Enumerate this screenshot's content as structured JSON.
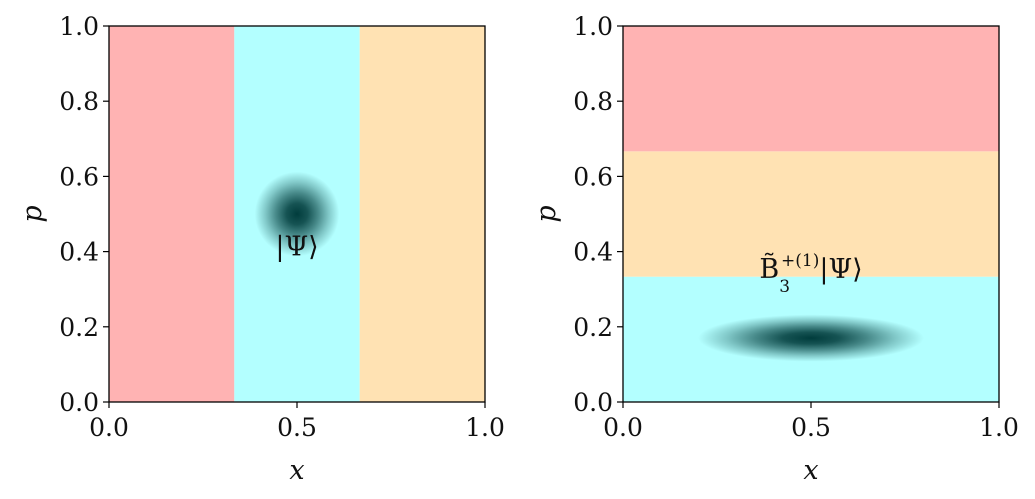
{
  "chart_data": [
    {
      "type": "heatmap",
      "title": "",
      "xlabel": "x",
      "ylabel": "p",
      "xlim": [
        0.0,
        1.0
      ],
      "ylim": [
        0.0,
        1.0
      ],
      "x_ticks": [
        "0.0",
        "0.5",
        "1.0"
      ],
      "y_ticks": [
        "0.0",
        "0.2",
        "0.4",
        "0.6",
        "0.8",
        "1.0"
      ],
      "grid": false,
      "regions": [
        {
          "orientation": "vertical",
          "from": 0.0,
          "to": 0.3333,
          "color": "#ffb3b3"
        },
        {
          "orientation": "vertical",
          "from": 0.3333,
          "to": 0.6667,
          "color": "#b3ffff"
        },
        {
          "orientation": "vertical",
          "from": 0.6667,
          "to": 1.0,
          "color": "#ffe2b3"
        }
      ],
      "blob": {
        "x": 0.5,
        "p": 0.5,
        "sigma_x": 0.045,
        "sigma_p": 0.045,
        "color": "#003c3c"
      },
      "annotation": {
        "text": "|Ψ⟩",
        "x": 0.5,
        "p": 0.39
      }
    },
    {
      "type": "heatmap",
      "title": "",
      "xlabel": "x",
      "ylabel": "p",
      "xlim": [
        0.0,
        1.0
      ],
      "ylim": [
        0.0,
        1.0
      ],
      "x_ticks": [
        "0.0",
        "0.5",
        "1.0"
      ],
      "y_ticks": [
        "0.0",
        "0.2",
        "0.4",
        "0.6",
        "0.8",
        "1.0"
      ],
      "grid": false,
      "regions": [
        {
          "orientation": "horizontal",
          "from": 0.0,
          "to": 0.3333,
          "color": "#b3ffff"
        },
        {
          "orientation": "horizontal",
          "from": 0.3333,
          "to": 0.6667,
          "color": "#ffe2b3"
        },
        {
          "orientation": "horizontal",
          "from": 0.6667,
          "to": 1.0,
          "color": "#ffb3b3"
        }
      ],
      "blob": {
        "x": 0.5,
        "p": 0.17,
        "sigma_x": 0.12,
        "sigma_p": 0.025,
        "color": "#003c3c"
      },
      "annotation": {
        "main": "B̃",
        "sub": "3",
        "sup": "+(1)",
        "ket": "|Ψ⟩",
        "x": 0.5,
        "p": 0.33
      }
    }
  ]
}
